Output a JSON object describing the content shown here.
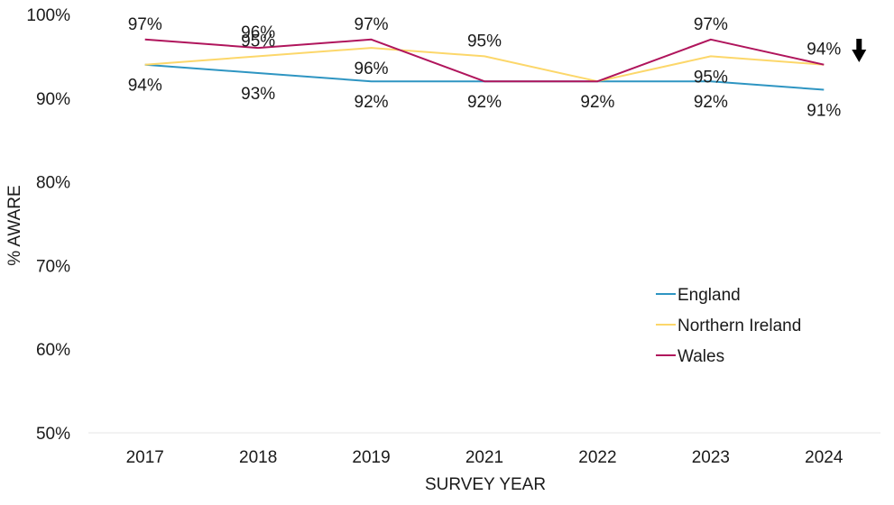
{
  "chart_data": {
    "type": "line",
    "title": "",
    "xlabel": "SURVEY YEAR",
    "ylabel": "% AWARE",
    "categories": [
      "2017",
      "2018",
      "2019",
      "2021",
      "2022",
      "2023",
      "2024"
    ],
    "ylim": [
      50,
      100
    ],
    "yticks": [
      50,
      60,
      70,
      80,
      90,
      100
    ],
    "ytick_labels": [
      "50%",
      "60%",
      "70%",
      "80%",
      "90%",
      "100%"
    ],
    "grid": false,
    "legend_position": "right",
    "series": [
      {
        "name": "England",
        "color": "#2e95c2",
        "values": [
          94,
          93,
          92,
          92,
          92,
          92,
          91
        ],
        "labels": [
          "94%",
          "93%",
          "92%",
          "92%",
          "92%",
          "92%",
          "91%"
        ],
        "label_positions": [
          "below",
          "below",
          "below",
          "below",
          "below",
          "below",
          "below"
        ]
      },
      {
        "name": "Northern Ireland",
        "color": "#fcd76a",
        "values": [
          94,
          95,
          96,
          95,
          92,
          95,
          94
        ],
        "labels": [
          "",
          "95%",
          "96%",
          "95%",
          "",
          "95%",
          ""
        ],
        "label_positions": [
          "none",
          "above",
          "below",
          "above",
          "none",
          "below",
          "none"
        ]
      },
      {
        "name": "Wales",
        "color": "#b0155c",
        "values": [
          97,
          96,
          97,
          92,
          92,
          97,
          94
        ],
        "labels": [
          "97%",
          "96%",
          "97%",
          "",
          "",
          "97%",
          "94%"
        ],
        "label_positions": [
          "above",
          "above",
          "above",
          "none",
          "none",
          "above",
          "above"
        ]
      }
    ],
    "annotation": {
      "icon": "down-arrow-icon",
      "meaning": "decrease",
      "category": "2024",
      "color": "#000000"
    }
  }
}
